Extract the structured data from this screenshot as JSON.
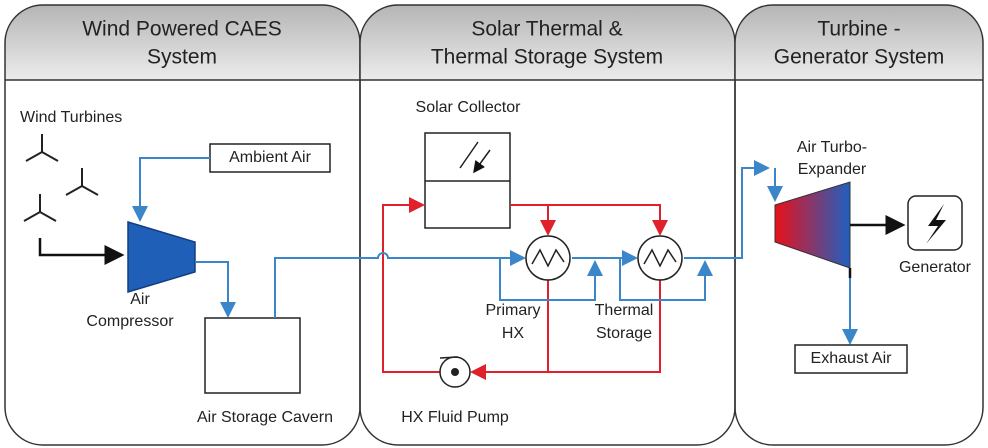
{
  "panels": [
    {
      "title_lines": [
        "Wind Powered CAES",
        "System"
      ]
    },
    {
      "title_lines": [
        "Solar Thermal &",
        "Thermal Storage System"
      ]
    },
    {
      "title_lines": [
        "Turbine -",
        "Generator System"
      ]
    }
  ],
  "labels": {
    "wind_turbines": "Wind Turbines",
    "ambient_air": "Ambient Air",
    "air_compressor": [
      "Air",
      "Compressor"
    ],
    "air_storage_cavern": "Air Storage Cavern",
    "solar_collector": "Solar Collector",
    "primary_hx": [
      "Primary",
      "HX"
    ],
    "thermal_storage": [
      "Thermal",
      "Storage"
    ],
    "hx_fluid_pump": "HX Fluid Pump",
    "air_turbo_expander": [
      "Air Turbo-",
      "Expander"
    ],
    "generator": "Generator",
    "exhaust_air": "Exhaust Air"
  }
}
